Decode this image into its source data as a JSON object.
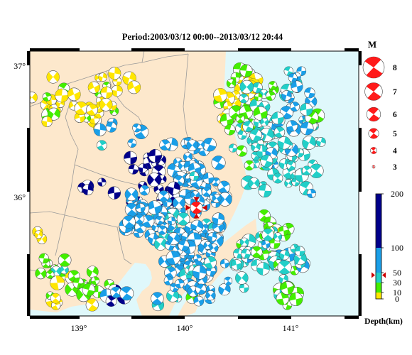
{
  "map": {
    "title": "Period:2003/03/12 00:00--2013/03/12 20:44",
    "lat_labels": [
      "37°",
      "36°"
    ],
    "lon_labels": [
      "139°",
      "140°",
      "141°"
    ],
    "extent": {
      "lon": [
        138.55,
        141.65
      ],
      "lat": [
        35.15,
        37.18
      ]
    },
    "colors": {
      "land": "#fde8cc",
      "sea": "#dff8fb",
      "border": "#9a9a9a",
      "frame": "#000000"
    }
  },
  "magnitude_legend": {
    "title": "M",
    "items": [
      {
        "label": "8",
        "value": 8
      },
      {
        "label": "7",
        "value": 7
      },
      {
        "label": "6",
        "value": 6
      },
      {
        "label": "5",
        "value": 5
      },
      {
        "label": "4",
        "value": 4
      },
      {
        "label": "3",
        "value": 3
      }
    ],
    "color": "#ff1a1a"
  },
  "depth_legend": {
    "title": "Depth(km)",
    "ticks": [
      "200",
      "100",
      "50",
      "30",
      "10",
      "0"
    ],
    "bands": [
      {
        "from": 0,
        "to": 10,
        "color": "#ffe600"
      },
      {
        "from": 10,
        "to": 30,
        "color": "#44ee00"
      },
      {
        "from": 30,
        "to": 50,
        "color": "#22cfc8"
      },
      {
        "from": 50,
        "to": 100,
        "color": "#1a9fe8"
      },
      {
        "from": 100,
        "to": 200,
        "color": "#00008b"
      }
    ],
    "marker_depth": 45
  },
  "mainshock": {
    "lon": 140.12,
    "lat": 35.98,
    "depth": 45,
    "mag": 4
  },
  "clusters": [
    {
      "lon": 138.78,
      "lat": 36.78,
      "sx": 0.1,
      "sy": 0.1,
      "n": 14,
      "depth": 5
    },
    {
      "lon": 139.2,
      "lat": 36.8,
      "sx": 0.1,
      "sy": 0.13,
      "n": 14,
      "depth": 5
    },
    {
      "lon": 139.35,
      "lat": 36.95,
      "sx": 0.12,
      "sy": 0.06,
      "n": 8,
      "depth": 5
    },
    {
      "lon": 139.4,
      "lat": 36.55,
      "sx": 0.14,
      "sy": 0.08,
      "n": 7,
      "depth": 60
    },
    {
      "lon": 139.0,
      "lat": 36.8,
      "sx": 0.09,
      "sy": 0.08,
      "n": 5,
      "depth": 5
    },
    {
      "lon": 140.58,
      "lat": 36.92,
      "sx": 0.08,
      "sy": 0.12,
      "n": 28,
      "depth": 5
    },
    {
      "lon": 140.45,
      "lat": 36.7,
      "sx": 0.07,
      "sy": 0.07,
      "n": 10,
      "depth": 5
    },
    {
      "lon": 140.58,
      "lat": 36.65,
      "sx": 0.06,
      "sy": 0.08,
      "n": 10,
      "depth": 20
    },
    {
      "lon": 140.78,
      "lat": 36.7,
      "sx": 0.16,
      "sy": 0.22,
      "n": 30,
      "depth": 40
    },
    {
      "lon": 141.05,
      "lat": 36.78,
      "sx": 0.14,
      "sy": 0.25,
      "n": 20,
      "depth": 60
    },
    {
      "lon": 140.7,
      "lat": 36.35,
      "sx": 0.15,
      "sy": 0.15,
      "n": 30,
      "depth": 40
    },
    {
      "lon": 141.0,
      "lat": 36.35,
      "sx": 0.14,
      "sy": 0.14,
      "n": 18,
      "depth": 40
    },
    {
      "lon": 141.25,
      "lat": 36.6,
      "sx": 0.1,
      "sy": 0.12,
      "n": 8,
      "depth": 40
    },
    {
      "lon": 141.15,
      "lat": 36.2,
      "sx": 0.13,
      "sy": 0.06,
      "n": 6,
      "depth": 40
    },
    {
      "lon": 140.05,
      "lat": 36.3,
      "sx": 0.15,
      "sy": 0.15,
      "n": 40,
      "depth": 70
    },
    {
      "lon": 139.65,
      "lat": 36.25,
      "sx": 0.15,
      "sy": 0.12,
      "n": 15,
      "depth": 110
    },
    {
      "lon": 139.2,
      "lat": 36.15,
      "sx": 0.1,
      "sy": 0.06,
      "n": 5,
      "depth": 110
    },
    {
      "lon": 139.85,
      "lat": 36.05,
      "sx": 0.12,
      "sy": 0.12,
      "n": 12,
      "depth": 110
    },
    {
      "lon": 139.9,
      "lat": 35.85,
      "sx": 0.18,
      "sy": 0.15,
      "n": 40,
      "depth": 60
    },
    {
      "lon": 140.25,
      "lat": 35.85,
      "sx": 0.13,
      "sy": 0.22,
      "n": 45,
      "depth": 65
    },
    {
      "lon": 140.0,
      "lat": 35.6,
      "sx": 0.15,
      "sy": 0.12,
      "n": 25,
      "depth": 60
    },
    {
      "lon": 139.6,
      "lat": 35.95,
      "sx": 0.15,
      "sy": 0.12,
      "n": 25,
      "depth": 75
    },
    {
      "lon": 140.2,
      "lat": 35.45,
      "sx": 0.16,
      "sy": 0.12,
      "n": 25,
      "depth": 50
    },
    {
      "lon": 140.0,
      "lat": 35.3,
      "sx": 0.14,
      "sy": 0.08,
      "n": 10,
      "depth": 60
    },
    {
      "lon": 140.55,
      "lat": 35.55,
      "sx": 0.07,
      "sy": 0.15,
      "n": 12,
      "depth": 40
    },
    {
      "lon": 140.85,
      "lat": 35.8,
      "sx": 0.1,
      "sy": 0.08,
      "n": 15,
      "depth": 20
    },
    {
      "lon": 140.8,
      "lat": 35.6,
      "sx": 0.18,
      "sy": 0.1,
      "n": 25,
      "depth": 40
    },
    {
      "lon": 141.05,
      "lat": 35.55,
      "sx": 0.12,
      "sy": 0.08,
      "n": 10,
      "depth": 40
    },
    {
      "lon": 141.0,
      "lat": 35.35,
      "sx": 0.1,
      "sy": 0.08,
      "n": 8,
      "depth": 20
    },
    {
      "lon": 138.8,
      "lat": 35.5,
      "sx": 0.12,
      "sy": 0.1,
      "n": 15,
      "depth": 20
    },
    {
      "lon": 139.1,
      "lat": 35.35,
      "sx": 0.12,
      "sy": 0.08,
      "n": 15,
      "depth": 20
    },
    {
      "lon": 138.75,
      "lat": 35.3,
      "sx": 0.08,
      "sy": 0.06,
      "n": 6,
      "depth": 5
    },
    {
      "lon": 139.35,
      "lat": 35.3,
      "sx": 0.1,
      "sy": 0.08,
      "n": 6,
      "depth": 100
    },
    {
      "lon": 138.62,
      "lat": 35.78,
      "sx": 0.04,
      "sy": 0.04,
      "n": 3,
      "depth": 5
    }
  ]
}
